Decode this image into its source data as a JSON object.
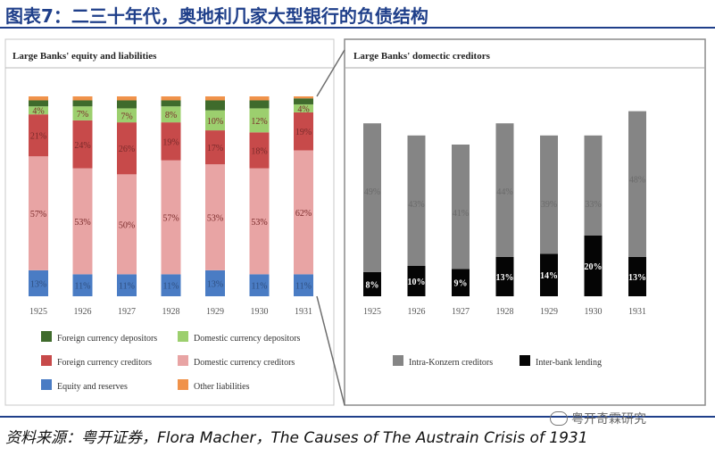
{
  "header": {
    "title": "图表7：二三十年代，奥地利几家大型银行的负债结构"
  },
  "footer": {
    "source": "资料来源：粤开证券，Flora Macher，The Causes of The Austrain Crisis of 1931",
    "watermark": "粤开奇霖研究"
  },
  "chart_data": [
    {
      "type": "bar",
      "stacked": true,
      "title": "Large Banks' equity and liabilities",
      "categories": [
        "1925",
        "1926",
        "1927",
        "1928",
        "1929",
        "1930",
        "1931"
      ],
      "ylim": [
        0,
        100
      ],
      "legend_position": "bottom",
      "series": [
        {
          "name": "Equity and reserves",
          "color": "#4a7cc4",
          "values": [
            13,
            11,
            11,
            11,
            13,
            11,
            11
          ],
          "labels": [
            "13%",
            "11%",
            "11%",
            "11%",
            "13%",
            "11%",
            "11%"
          ]
        },
        {
          "name": "Domestic currency creditors",
          "color": "#e8a4a4",
          "values": [
            57,
            53,
            50,
            57,
            53,
            53,
            62
          ],
          "labels": [
            "57%",
            "53%",
            "50%",
            "57%",
            "53%",
            "53%",
            "62%"
          ]
        },
        {
          "name": "Foreign currency creditors",
          "color": "#c74a4a",
          "values": [
            21,
            24,
            26,
            19,
            17,
            18,
            19
          ],
          "labels": [
            "21%",
            "24%",
            "26%",
            "19%",
            "17%",
            "18%",
            "19%"
          ]
        },
        {
          "name": "Domestic currency depositors",
          "color": "#9ccf6e",
          "values": [
            4,
            7,
            7,
            8,
            10,
            12,
            4
          ],
          "labels": [
            "4%",
            "7%",
            "7%",
            "8%",
            "10%",
            "12%",
            "4%"
          ]
        },
        {
          "name": "Foreign currency depositors",
          "color": "#3f6b2c",
          "values": [
            3,
            3,
            4,
            3,
            5,
            4,
            3
          ],
          "labels": [
            "",
            "",
            "",
            "",
            "",
            "",
            ""
          ]
        },
        {
          "name": "Other liabilities",
          "color": "#f0924a",
          "values": [
            2,
            2,
            2,
            2,
            2,
            2,
            1
          ],
          "labels": [
            "",
            "",
            "",
            "",
            "",
            "",
            ""
          ]
        }
      ],
      "legend_order": [
        "Foreign currency depositors",
        "Domestic currency depositors",
        "Foreign currency creditors",
        "Domestic currency creditors",
        "Equity and reserves",
        "Other liabilities"
      ]
    },
    {
      "type": "bar",
      "stacked": true,
      "title": "Large Banks' domectic creditors",
      "categories": [
        "1925",
        "1926",
        "1927",
        "1928",
        "1929",
        "1930",
        "1931"
      ],
      "ylim": [
        0,
        62
      ],
      "legend_position": "bottom",
      "series": [
        {
          "name": "Inter-bank lending",
          "color": "#050505",
          "values": [
            8,
            10,
            9,
            13,
            14,
            20,
            13
          ],
          "labels": [
            "8%",
            "10%",
            "9%",
            "13%",
            "14%",
            "20%",
            "13%"
          ]
        },
        {
          "name": "Intra-Konzern creditors",
          "color": "#858585",
          "values": [
            49,
            43,
            41,
            44,
            39,
            33,
            48
          ],
          "labels": [
            "49%",
            "43%",
            "41%",
            "44%",
            "39%",
            "33%",
            "48%"
          ]
        }
      ],
      "legend_order": [
        "Intra-Konzern creditors",
        "Inter-bank lending"
      ]
    }
  ]
}
